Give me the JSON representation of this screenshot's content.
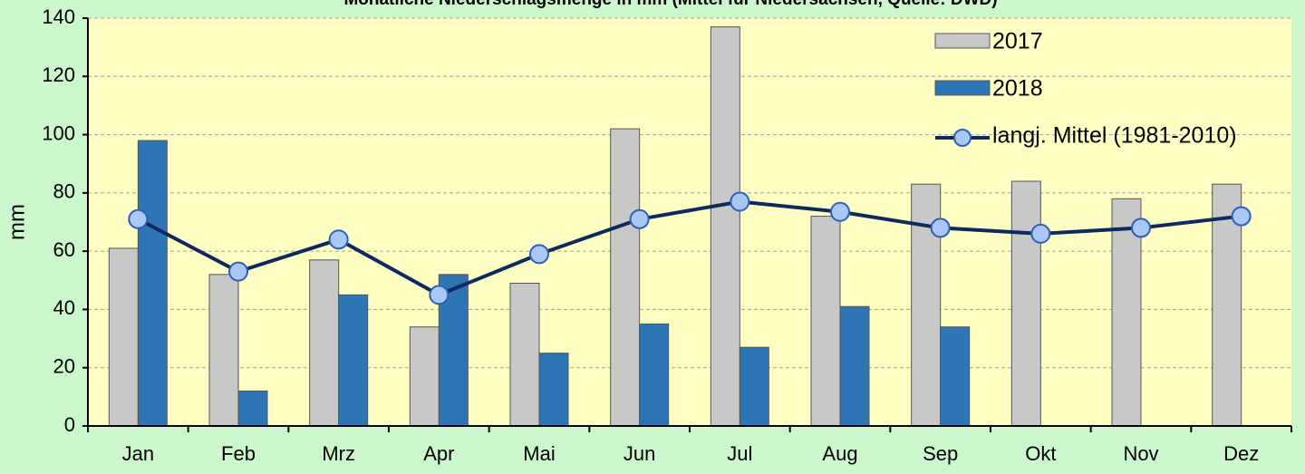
{
  "chart_data": {
    "type": "bar_line",
    "title": "Monatliche Niederschlagsmenge in mm (Mittel für Niedersachsen, Quelle: DWD)",
    "y_label": "mm",
    "categories": [
      "Jan",
      "Feb",
      "Mrz",
      "Apr",
      "Mai",
      "Jun",
      "Jul",
      "Aug",
      "Sep",
      "Okt",
      "Nov",
      "Dez"
    ],
    "series": [
      {
        "name": "2017",
        "type": "bar",
        "color": "#c8c8c8",
        "values": [
          61,
          52,
          57,
          34,
          49,
          102,
          137,
          72,
          83,
          84,
          78,
          83
        ]
      },
      {
        "name": "2018",
        "type": "bar",
        "color": "#2e75b6",
        "values": [
          98,
          12,
          45,
          52,
          25,
          35,
          27,
          41,
          34,
          null,
          null,
          null
        ]
      },
      {
        "name": "langj. Mittel (1981-2010)",
        "type": "line",
        "color": "#0d2a5e",
        "marker_color": "#a9c8f5",
        "values": [
          71,
          53,
          64,
          45,
          59,
          71,
          77,
          73.5,
          68,
          66,
          68,
          72
        ]
      }
    ],
    "ylim": [
      0,
      140
    ],
    "yticks": [
      0,
      20,
      40,
      60,
      80,
      100,
      120,
      140
    ],
    "grid": true,
    "legend": "upper right"
  }
}
